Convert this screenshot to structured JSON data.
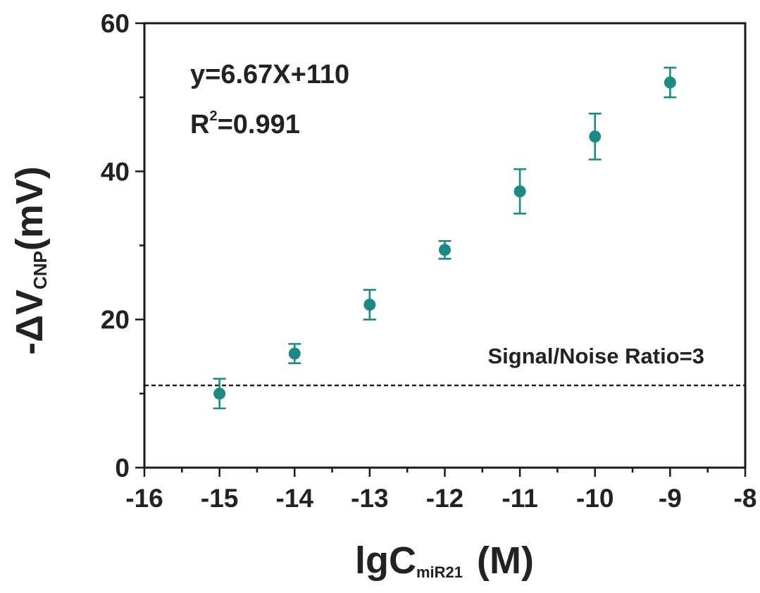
{
  "chart_data": {
    "type": "scatter",
    "xlabel_main": "lgC",
    "xlabel_sub": "miR21",
    "xlabel_unit": "(M)",
    "ylabel_prefix": "-ΔV",
    "ylabel_sub": "CNP",
    "ylabel_unit": "(mV)",
    "xlim": [
      -16,
      -8
    ],
    "ylim": [
      0,
      60
    ],
    "x_ticks": [
      "-16",
      "-15",
      "-14",
      "-13",
      "-12",
      "-11",
      "-10",
      "-9",
      "-8"
    ],
    "y_ticks": [
      "0",
      "20",
      "40",
      "60"
    ],
    "points": [
      {
        "x": -15,
        "y": 10.0,
        "err": 2.0
      },
      {
        "x": -14,
        "y": 15.4,
        "err": 1.3
      },
      {
        "x": -13,
        "y": 22.0,
        "err": 2.0
      },
      {
        "x": -12,
        "y": 29.4,
        "err": 1.2
      },
      {
        "x": -11,
        "y": 37.3,
        "err": 3.0
      },
      {
        "x": -10,
        "y": 44.7,
        "err": 3.1
      },
      {
        "x": -9,
        "y": 52.0,
        "err": 2.0
      }
    ],
    "threshold": {
      "y": 11.1,
      "label": "Signal/Noise Ratio=3"
    },
    "annotation": {
      "equation": "y=6.67X+110",
      "r_base": "R",
      "r_exp": "2",
      "r_value": "=0.991"
    },
    "series_color": "#1c8a84"
  }
}
